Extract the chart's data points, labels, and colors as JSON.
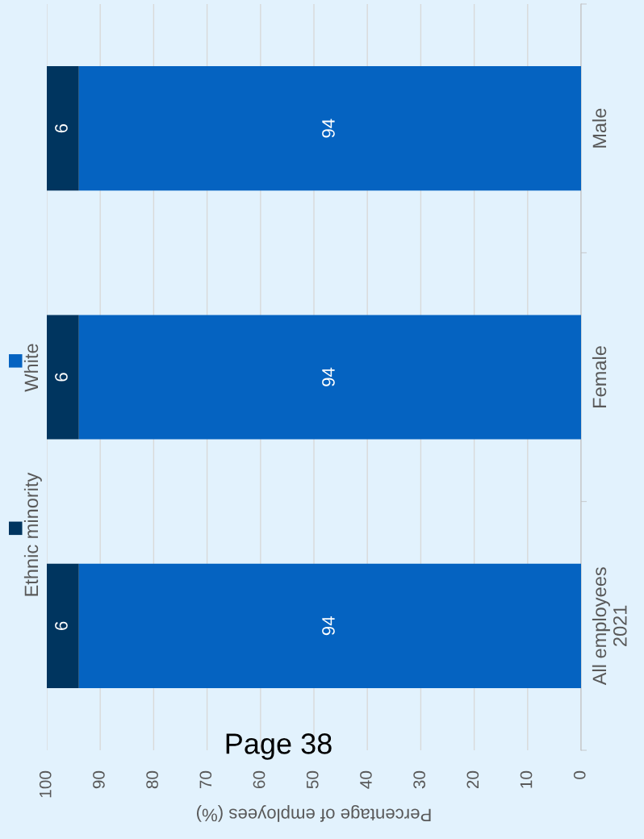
{
  "chart_data": {
    "type": "bar",
    "orientation": "horizontal",
    "stacked": true,
    "categories": [
      "Male",
      "Female",
      "All employees\n2021"
    ],
    "series": [
      {
        "name": "White",
        "color": "#0563c1",
        "values": [
          94,
          94,
          94
        ]
      },
      {
        "name": "Ethnic minority",
        "color": "#00355f",
        "values": [
          6,
          6,
          6
        ]
      }
    ],
    "xlabel": "Percentage of employees (%)",
    "xlim": [
      100,
      0
    ],
    "xticks": [
      0,
      10,
      20,
      30,
      40,
      50,
      60,
      70,
      80,
      90,
      100
    ],
    "grid": "x",
    "legend": "left",
    "data_labels": true,
    "annotations": [
      "Page 38"
    ]
  }
}
